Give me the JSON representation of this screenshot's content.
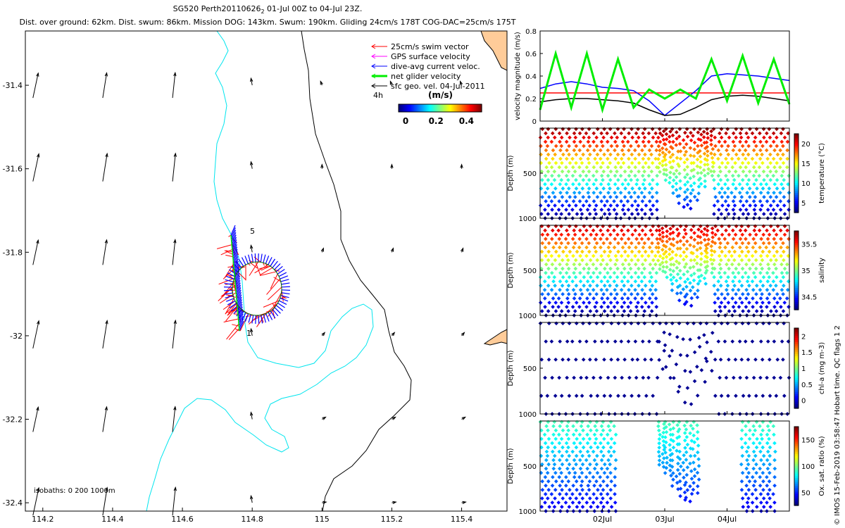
{
  "title_line1": "SG520 Perth20110626",
  "title_line1_sub": "2",
  "title_line1_rest": " 01-Jul 00Z to 04-Jul 23Z.",
  "title_line2": "Dist. over ground: 62km. Dist. swum: 86km. Mission DOG: 143km. Swum: 190km. Gliding 24cm/s 178T COG-DAC=25cm/s 175T",
  "map": {
    "xticks": [
      "114.2",
      "114.4",
      "114.6",
      "114.8",
      "115",
      "115.2",
      "115.4"
    ],
    "yticks": [
      "-31.4",
      "-31.6",
      "-31.8",
      "-32",
      "-32.2",
      "-32.4"
    ],
    "xlim": [
      114.15,
      115.53
    ],
    "ylim": [
      -32.42,
      -31.27
    ],
    "isobaths_label": "isobaths: 0   200  1000m",
    "start_label": "1",
    "end_label": "5",
    "legend": [
      {
        "label": "25cm/s swim vector",
        "color": "#ff0000"
      },
      {
        "label": "GPS surface velocity",
        "color": "#ff00ff"
      },
      {
        "label": "dive-avg current veloc.",
        "color": "#0000ff"
      },
      {
        "label": "net glider velocity",
        "color": "#00ee00"
      },
      {
        "label": "sfc geo. vel. 04-Jul-2011",
        "color": "#000000"
      }
    ],
    "time_step_label": "4h",
    "colorbar": {
      "label": "(m/s)",
      "ticks": [
        "0",
        "0.2",
        "0.4"
      ]
    },
    "colors": {
      "isobath_200": "#00e5ee",
      "isobath_1000": "#000000",
      "land": "#ffcc99",
      "swim": "#ff0000",
      "dac": "#0000ff",
      "net": "#00ee00"
    }
  },
  "chart_data": [
    {
      "type": "line",
      "title": "",
      "ylabel": "velocity magnitude (m/s)",
      "ylim": [
        0,
        0.8
      ],
      "yticks": [
        "0",
        "0.2",
        "0.4",
        "0.6",
        "0.8"
      ],
      "x": [
        0,
        0.25,
        0.5,
        0.75,
        1,
        1.25,
        1.5,
        1.75,
        2,
        2.25,
        2.5,
        2.75,
        3,
        3.25,
        3.5,
        3.75,
        4
      ],
      "series": [
        {
          "color": "#ff0000",
          "values": [
            0.25,
            0.25,
            0.25,
            0.25,
            0.25,
            0.25,
            0.25,
            0.25,
            0.25,
            0.25,
            0.25,
            0.25,
            0.25,
            0.25,
            0.25,
            0.25,
            0.25
          ]
        },
        {
          "color": "#0000ff",
          "values": [
            0.29,
            0.33,
            0.35,
            0.33,
            0.3,
            0.29,
            0.27,
            0.18,
            0.05,
            0.16,
            0.27,
            0.4,
            0.42,
            0.41,
            0.4,
            0.38,
            0.36
          ]
        },
        {
          "color": "#000000",
          "values": [
            0.17,
            0.19,
            0.2,
            0.2,
            0.19,
            0.18,
            0.16,
            0.1,
            0.05,
            0.06,
            0.12,
            0.19,
            0.22,
            0.23,
            0.22,
            0.2,
            0.18
          ]
        },
        {
          "color": "#00ee00",
          "values": [
            0.1,
            0.6,
            0.12,
            0.6,
            0.1,
            0.55,
            0.12,
            0.28,
            0.2,
            0.28,
            0.2,
            0.55,
            0.18,
            0.58,
            0.16,
            0.55,
            0.15
          ]
        }
      ]
    },
    {
      "type": "scatter",
      "ylabel": "Depth (m)",
      "yticks": [
        "500",
        "1000"
      ],
      "colorbar_label": "temperature (°C)",
      "colorbar_ticks": [
        "5",
        "10",
        "15",
        "20"
      ],
      "variable": "temperature"
    },
    {
      "type": "scatter",
      "ylabel": "Depth (m)",
      "yticks": [
        "500",
        "1000"
      ],
      "colorbar_label": "salinity",
      "colorbar_ticks": [
        "34.5",
        "35",
        "35.5"
      ],
      "variable": "salinity"
    },
    {
      "type": "scatter",
      "ylabel": "Depth (m)",
      "yticks": [
        "500",
        "1000"
      ],
      "colorbar_label": "chl-a (mg m-3)",
      "colorbar_ticks": [
        "0",
        "0.5",
        "1",
        "1.5",
        "2"
      ],
      "variable": "chl-a"
    },
    {
      "type": "scatter",
      "ylabel": "Depth (m)",
      "yticks": [
        "500",
        "1000"
      ],
      "colorbar_label": "Ox. sat. ratio (%)",
      "colorbar_ticks": [
        "50",
        "100",
        "150"
      ],
      "variable": "oxygen"
    }
  ],
  "time_axis": {
    "ticks": [
      "02Jul",
      "03Jul",
      "04Jul"
    ],
    "tick_days": [
      1,
      2,
      3
    ],
    "xlim_days": [
      0,
      4
    ]
  },
  "footer_note": "© IMOS 15-Feb-2019 03:58:47 Hobart time. QC flags 1  2"
}
